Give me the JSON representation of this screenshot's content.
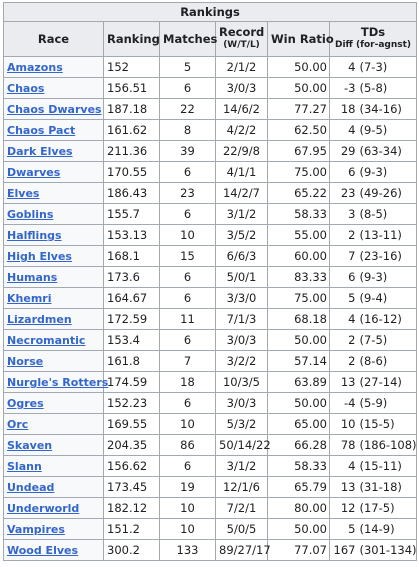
{
  "table": {
    "title": "Rankings",
    "headers": {
      "race": "Race",
      "ranking": "Ranking",
      "matches": "Matches",
      "record": "Record",
      "record_sub": "(W/T/L)",
      "win_ratio": "Win Ratio",
      "tds": "TDs",
      "tds_sub": "Diff (for-agnst)"
    },
    "rows": [
      [
        "Amazons",
        "152",
        "5",
        "2/1/2",
        "50.00",
        "4",
        "(7-3)"
      ],
      [
        "Chaos",
        "156.51",
        "6",
        "3/0/3",
        "50.00",
        "-3",
        "(5-8)"
      ],
      [
        "Chaos Dwarves",
        "187.18",
        "22",
        "14/6/2",
        "77.27",
        "18",
        "(34-16)"
      ],
      [
        "Chaos Pact",
        "161.62",
        "8",
        "4/2/2",
        "62.50",
        "4",
        "(9-5)"
      ],
      [
        "Dark Elves",
        "211.36",
        "39",
        "22/9/8",
        "67.95",
        "29",
        "(63-34)"
      ],
      [
        "Dwarves",
        "170.55",
        "6",
        "4/1/1",
        "75.00",
        "6",
        "(9-3)"
      ],
      [
        "Elves",
        "186.43",
        "23",
        "14/2/7",
        "65.22",
        "23",
        "(49-26)"
      ],
      [
        "Goblins",
        "155.7",
        "6",
        "3/1/2",
        "58.33",
        "3",
        "(8-5)"
      ],
      [
        "Halflings",
        "153.13",
        "10",
        "3/5/2",
        "55.00",
        "2",
        "(13-11)"
      ],
      [
        "High Elves",
        "168.1",
        "15",
        "6/6/3",
        "60.00",
        "7",
        "(23-16)"
      ],
      [
        "Humans",
        "173.6",
        "6",
        "5/0/1",
        "83.33",
        "6",
        "(9-3)"
      ],
      [
        "Khemri",
        "164.67",
        "6",
        "3/3/0",
        "75.00",
        "5",
        "(9-4)"
      ],
      [
        "Lizardmen",
        "172.59",
        "11",
        "7/1/3",
        "68.18",
        "4",
        "(16-12)"
      ],
      [
        "Necromantic",
        "153.4",
        "6",
        "3/0/3",
        "50.00",
        "2",
        "(7-5)"
      ],
      [
        "Norse",
        "161.8",
        "7",
        "3/2/2",
        "57.14",
        "2",
        "(8-6)"
      ],
      [
        "Nurgle's Rotters",
        "174.59",
        "18",
        "10/3/5",
        "63.89",
        "13",
        "(27-14)"
      ],
      [
        "Ogres",
        "152.23",
        "6",
        "3/0/3",
        "50.00",
        "-4",
        "(5-9)"
      ],
      [
        "Orc",
        "169.55",
        "10",
        "5/3/2",
        "65.00",
        "10",
        "(15-5)"
      ],
      [
        "Skaven",
        "204.35",
        "86",
        "50/14/22",
        "66.28",
        "78",
        "(186-108)"
      ],
      [
        "Slann",
        "156.62",
        "6",
        "3/1/2",
        "58.33",
        "4",
        "(15-11)"
      ],
      [
        "Undead",
        "173.45",
        "19",
        "12/1/6",
        "65.79",
        "13",
        "(31-18)"
      ],
      [
        "Underworld",
        "182.12",
        "10",
        "7/2/1",
        "80.00",
        "12",
        "(17-5)"
      ],
      [
        "Vampires",
        "151.2",
        "10",
        "5/0/5",
        "50.00",
        "5",
        "(14-9)"
      ],
      [
        "Wood Elves",
        "300.2",
        "133",
        "89/27/17",
        "77.07",
        "167",
        "(301-134)"
      ]
    ]
  }
}
